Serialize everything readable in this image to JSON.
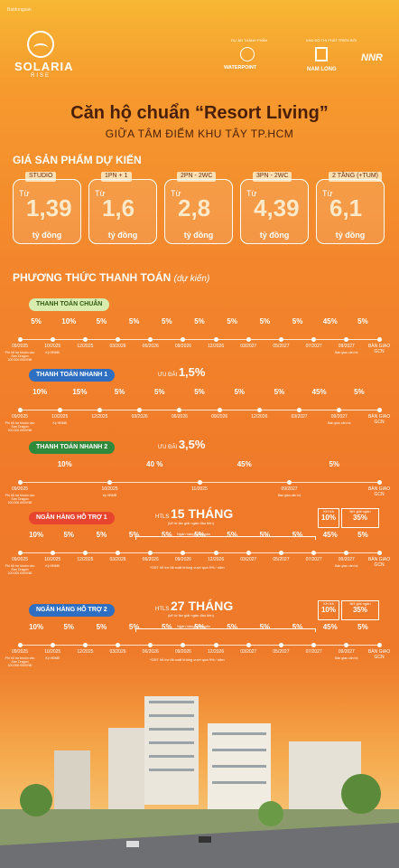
{
  "header": {
    "brand_name": "SOLARIA",
    "brand_tagline": "RISE",
    "watermark": "Batdongsan",
    "developer_label": "DỰ ÁN THÀNH PHẦN",
    "developer_name": "WATERPOINT",
    "partner_label": "KHU ĐÔ THỊ PHÁT TRIỂN BỞI",
    "partner_1": "NAM LONG",
    "partner_2": "NNR"
  },
  "title": "Căn hộ chuẩn “Resort Living”",
  "subtitle": "GIỮA TÂM ĐIỂM KHU TÂY TP.HCM",
  "price_section": {
    "heading": "GIÁ SẢN PHẨM DỰ KIẾN",
    "cards": [
      {
        "type": "STUDIO",
        "prefix": "Từ",
        "value": "1,39",
        "unit": "tỷ đồng"
      },
      {
        "type": "1PN + 1",
        "prefix": "Từ",
        "value": "1,6",
        "unit": "tỷ đồng"
      },
      {
        "type": "2PN - 2WC",
        "prefix": "Từ",
        "value": "2,8",
        "unit": "tỷ đồng"
      },
      {
        "type": "3PN - 2WC",
        "prefix": "Từ",
        "value": "4,39",
        "unit": "tỷ đồng"
      },
      {
        "type": "2 TẦNG (+TUM)",
        "prefix": "Từ",
        "value": "6,1",
        "unit": "tỷ đồng"
      }
    ]
  },
  "payment_section": {
    "heading": "PHƯƠNG THỨC THANH TOÁN",
    "heading_note": "(dự kiến)"
  },
  "plans": [
    {
      "name": "THANH TOÁN CHUẨN",
      "pcts": [
        "5%",
        "10%",
        "5%",
        "5%",
        "5%",
        "5%",
        "5%",
        "5%",
        "5%",
        "45%",
        "5%"
      ],
      "dates": [
        "09/2025",
        "10/2025",
        "12/2025",
        "03/2026",
        "06/2026",
        "09/2026",
        "12/2026",
        "03/2027",
        "05/2027",
        "07/2027",
        "09/2027",
        "BÀN GIAO GCN"
      ],
      "notes": [
        "Phí hỗ trợ khuôn vào Sơn Dragon 100.000.000VNĐ",
        "Ký HĐMB",
        "Bàn giao căn hộ"
      ]
    },
    {
      "name": "THANH TOÁN NHANH 1",
      "discount_label": "ƯU ĐÃI",
      "discount": "1,5%",
      "pcts": [
        "10%",
        "15%",
        "5%",
        "5%",
        "5%",
        "5%",
        "5%",
        "45%",
        "5%"
      ],
      "dates": [
        "09/2025",
        "10/2025",
        "12/2025",
        "03/2026",
        "06/2026",
        "09/2026",
        "12/2026",
        "03/2027",
        "09/2027",
        "BÀN GIAO GCN"
      ],
      "notes": [
        "Phí hỗ trợ khuôn vào Sơn Dragon 100.000.000VNĐ",
        "Ký HĐMB",
        "Bàn giao căn hộ"
      ]
    },
    {
      "name": "THANH TOÁN NHANH 2",
      "discount_label": "ƯU ĐÃI",
      "discount": "3,5%",
      "pcts": [
        "10%",
        "40 %",
        "45%",
        "5%"
      ],
      "dates": [
        "09/2025",
        "10/2025",
        "11/2025",
        "09/2027",
        "BÀN GIAO GCN"
      ],
      "notes": [
        "Phí hỗ trợ khuôn vào Sơn Dragon 100.000.000VNĐ",
        "Ký HĐMB",
        "Bàn giao căn hộ"
      ]
    },
    {
      "name": "NGÂN HÀNG HỖ TRỢ 1",
      "htls_label": "HTLS",
      "htls": "15 THÁNG",
      "htls_note": "(kể từ lần giải ngân đầu tiên)",
      "box1_label": "KH trả",
      "box1_value": "10%",
      "box2_label": "NH giải ngân",
      "box2_value": "35%",
      "disbursement": "Ngân hàng giải ngân",
      "pcts": [
        "10%",
        "5%",
        "5%",
        "5%",
        "5%",
        "5%",
        "5%",
        "5%",
        "5%",
        "45%",
        "5%"
      ],
      "dates": [
        "09/2025",
        "10/2025",
        "12/2025",
        "03/2026",
        "06/2026",
        "09/2026",
        "12/2026",
        "03/2027",
        "05/2027",
        "07/2027",
        "09/2027",
        "BÀN GIAO GCN"
      ],
      "footnote": "*CĐT hỗ trợ lãi suất không vượt quá 9% / năm",
      "notes": [
        "Phí hỗ trợ khuôn vào Sơn Dragon 100.000.000VNĐ",
        "Ký HĐMB",
        "Bàn giao căn hộ"
      ]
    },
    {
      "name": "NGÂN HÀNG HỖ TRỢ 2",
      "htls_label": "HTLS",
      "htls": "27 THÁNG",
      "htls_note": "(kể từ lần giải ngân đầu tiên)",
      "box1_label": "KH trả",
      "box1_value": "10%",
      "box2_label": "NH giải ngân",
      "box2_value": "35%",
      "disbursement": "Ngân hàng giải ngân",
      "pcts": [
        "10%",
        "5%",
        "5%",
        "5%",
        "5%",
        "5%",
        "5%",
        "5%",
        "5%",
        "45%",
        "5%"
      ],
      "dates": [
        "09/2025",
        "10/2025",
        "12/2025",
        "03/2026",
        "06/2026",
        "09/2026",
        "12/2026",
        "03/2027",
        "05/2027",
        "07/2027",
        "09/2027",
        "BÀN GIAO GCN"
      ],
      "footnote": "*CĐT hỗ trợ lãi suất không vượt quá 9% / năm",
      "notes": [
        "Phí hỗ trợ khuôn vào Sơn Dragon 100.000.000VNĐ",
        "Ký HĐMB",
        "Bàn giao căn hộ"
      ]
    }
  ],
  "colors": {
    "plan_1": "#d9ecb0",
    "plan_2": "#2e6fc2",
    "plan_3": "#2f8a3c",
    "plan_4": "#e8452e",
    "plan_5": "#2e6fc2"
  }
}
